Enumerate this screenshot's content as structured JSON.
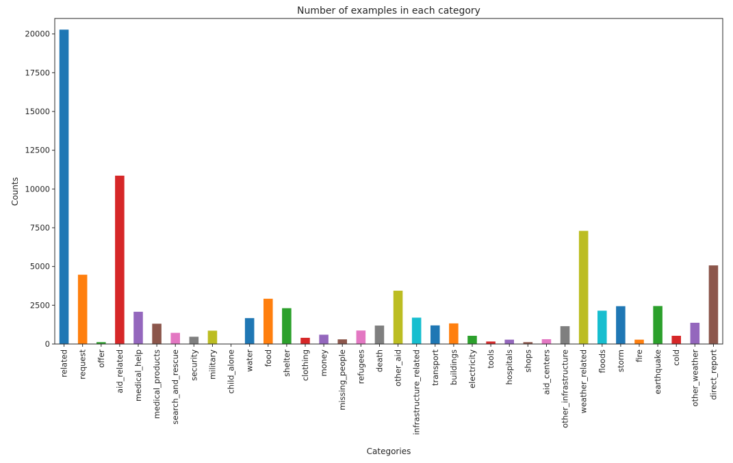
{
  "chart_data": {
    "type": "bar",
    "title": "Number of examples in each category",
    "xlabel": "Categories",
    "ylabel": "Counts",
    "ylim": [
      0,
      21000
    ],
    "yticks": [
      0,
      2500,
      5000,
      7500,
      10000,
      12500,
      15000,
      17500,
      20000
    ],
    "grid": false,
    "legend": "none",
    "categories": [
      "related",
      "request",
      "offer",
      "aid_related",
      "medical_help",
      "medical_products",
      "search_and_rescue",
      "security",
      "military",
      "child_alone",
      "water",
      "food",
      "shelter",
      "clothing",
      "money",
      "missing_people",
      "refugees",
      "death",
      "other_aid",
      "infrastructure_related",
      "transport",
      "buildings",
      "electricity",
      "tools",
      "hospitals",
      "shops",
      "aid_centers",
      "other_infrastructure",
      "weather_related",
      "floods",
      "storm",
      "fire",
      "earthquake",
      "cold",
      "other_weather",
      "direct_report"
    ],
    "values": [
      20280,
      4470,
      120,
      10860,
      2080,
      1310,
      720,
      470,
      860,
      0,
      1670,
      2920,
      2310,
      400,
      600,
      300,
      870,
      1190,
      3440,
      1700,
      1200,
      1330,
      530,
      160,
      280,
      120,
      310,
      1150,
      7300,
      2150,
      2440,
      280,
      2450,
      530,
      1370,
      5070
    ],
    "colors": [
      "#1f77b4",
      "#ff7f0e",
      "#2ca02c",
      "#d62728",
      "#9467bd",
      "#8c564b",
      "#e377c2",
      "#7f7f7f",
      "#bcbd22",
      "#17becf"
    ]
  }
}
